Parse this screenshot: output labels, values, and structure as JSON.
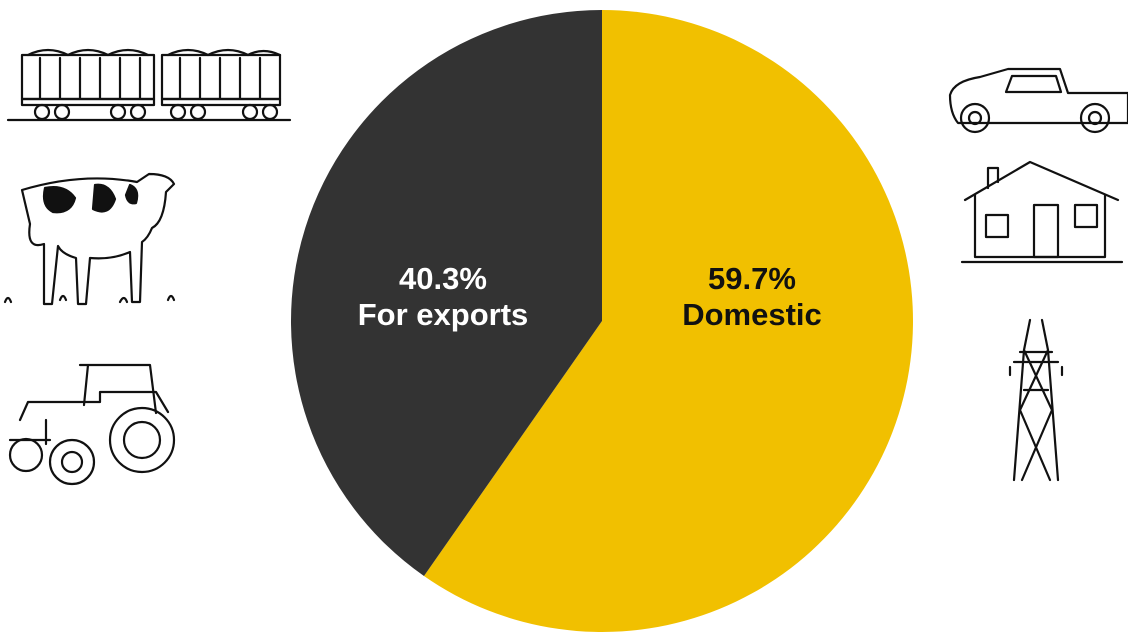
{
  "chart_data": {
    "type": "pie",
    "categories": [
      "Domestic",
      "For exports"
    ],
    "values": [
      59.7,
      40.3
    ],
    "value_labels": [
      "59.7%",
      "40.3%"
    ],
    "colors": [
      "#f1c000",
      "#333333"
    ]
  }
}
